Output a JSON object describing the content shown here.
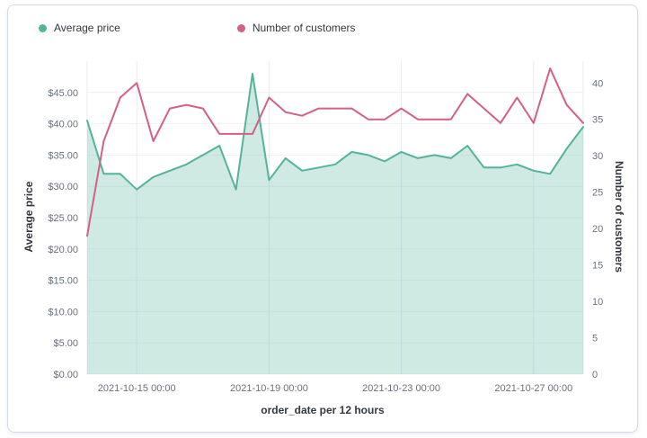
{
  "legend": {
    "items": [
      {
        "label": "Average price",
        "color": "#54b399"
      },
      {
        "label": "Number of customers",
        "color": "#d36086"
      }
    ]
  },
  "chart_data": {
    "type": "area",
    "title": "",
    "xlabel": "order_date per 12 hours",
    "legend_position": "top",
    "grid": true,
    "x": [
      "2021-10-13 12:00",
      "2021-10-14 00:00",
      "2021-10-14 12:00",
      "2021-10-15 00:00",
      "2021-10-15 12:00",
      "2021-10-16 00:00",
      "2021-10-16 12:00",
      "2021-10-17 00:00",
      "2021-10-17 12:00",
      "2021-10-18 00:00",
      "2021-10-18 12:00",
      "2021-10-19 00:00",
      "2021-10-19 12:00",
      "2021-10-20 00:00",
      "2021-10-20 12:00",
      "2021-10-21 00:00",
      "2021-10-21 12:00",
      "2021-10-22 00:00",
      "2021-10-22 12:00",
      "2021-10-23 00:00",
      "2021-10-23 12:00",
      "2021-10-24 00:00",
      "2021-10-24 12:00",
      "2021-10-25 00:00",
      "2021-10-25 12:00",
      "2021-10-26 00:00",
      "2021-10-26 12:00",
      "2021-10-27 00:00",
      "2021-10-27 12:00",
      "2021-10-28 00:00",
      "2021-10-28 12:00"
    ],
    "series": [
      {
        "name": "Average price",
        "kind": "area",
        "axis": "left",
        "color": "#54b399",
        "fill": "rgba(84,179,153,0.28)",
        "values": [
          40.5,
          32,
          32,
          29.5,
          31.5,
          32.5,
          33.5,
          35,
          36.5,
          29.5,
          48,
          31,
          34.5,
          32.5,
          33,
          33.5,
          35.5,
          35,
          34,
          35.5,
          34.5,
          35,
          34.5,
          36.5,
          33,
          33,
          33.5,
          32.5,
          32,
          36,
          39.5
        ]
      },
      {
        "name": "Number of customers",
        "kind": "line",
        "axis": "right",
        "color": "#d36086",
        "values": [
          19,
          32,
          38,
          40,
          32,
          36.5,
          37,
          36.5,
          33,
          33,
          33,
          38,
          36,
          35.5,
          36.5,
          36.5,
          36.5,
          35,
          35,
          36.5,
          35,
          35,
          35,
          38.5,
          36.5,
          34.5,
          38,
          34.5,
          42,
          37,
          34.5
        ]
      }
    ],
    "left_axis": {
      "title": "Average price",
      "range": [
        0,
        50
      ],
      "tick_values": [
        0,
        5,
        10,
        15,
        20,
        25,
        30,
        35,
        40,
        45
      ],
      "tick_labels": [
        "$0.00",
        "$5.00",
        "$10.00",
        "$15.00",
        "$20.00",
        "$25.00",
        "$30.00",
        "$35.00",
        "$40.00",
        "$45.00"
      ]
    },
    "right_axis": {
      "title": "Number of customers",
      "range": [
        0,
        43
      ],
      "tick_values": [
        0,
        5,
        10,
        15,
        20,
        25,
        30,
        35,
        40
      ],
      "tick_labels": [
        "0",
        "5",
        "10",
        "15",
        "20",
        "25",
        "30",
        "35",
        "40"
      ]
    },
    "x_tick_indices": [
      3,
      11,
      19,
      27
    ],
    "x_tick_labels": [
      "2021-10-15 00:00",
      "2021-10-19 00:00",
      "2021-10-23 00:00",
      "2021-10-27 00:00"
    ],
    "grid_color_h": "#eef1f6",
    "grid_color_v": "#e8ebf1"
  }
}
